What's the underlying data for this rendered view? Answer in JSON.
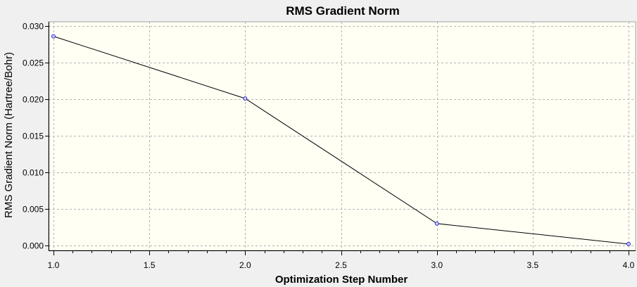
{
  "chart_data": {
    "type": "line",
    "title": "RMS Gradient Norm",
    "xlabel": "Optimization Step Number",
    "ylabel": "RMS Gradient Norm (Hartree/Bohr)",
    "x": [
      1.0,
      2.0,
      3.0,
      4.0
    ],
    "series": [
      {
        "values": [
          0.0286,
          0.0201,
          0.003,
          0.0002
        ]
      }
    ],
    "xlim": [
      1.0,
      4.0
    ],
    "ylim": [
      0.0,
      0.03
    ],
    "xticks": [
      "1.0",
      "1.5",
      "2.0",
      "2.5",
      "3.0",
      "3.5",
      "4.0"
    ],
    "xtick_values": [
      1.0,
      1.5,
      2.0,
      2.5,
      3.0,
      3.5,
      4.0
    ],
    "yticks": [
      "0.000",
      "0.005",
      "0.010",
      "0.015",
      "0.020",
      "0.025",
      "0.030"
    ],
    "ytick_values": [
      0.0,
      0.005,
      0.01,
      0.015,
      0.02,
      0.025,
      0.03
    ],
    "grid": true,
    "legend": "none",
    "colors": {
      "background": "#f0f0f0",
      "plot_background": "#fffff4",
      "line": "#000000",
      "marker": "#2e2ecc",
      "grid": "#b4b4b4"
    }
  }
}
